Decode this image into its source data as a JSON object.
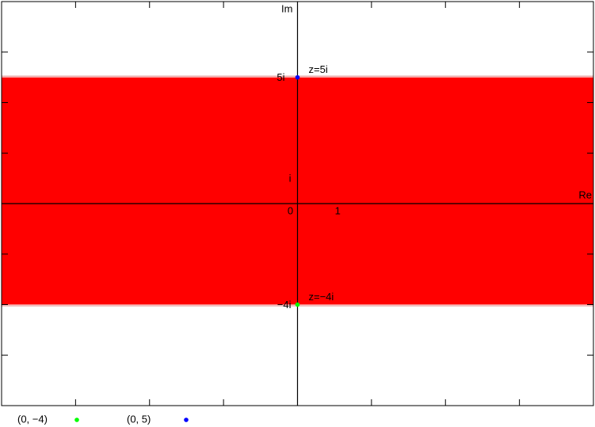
{
  "chart_data": {
    "type": "scatter",
    "xlabel": "Re",
    "ylabel": "Im",
    "xlim": [
      -8,
      8
    ],
    "ylim": [
      -8,
      8
    ],
    "xticks": [
      -6,
      -4,
      -2,
      0,
      2,
      4,
      6
    ],
    "yticks": [
      -6,
      -4,
      -2,
      0,
      2,
      4,
      6
    ],
    "x_labels": [
      {
        "value": 0,
        "label": "0"
      },
      {
        "value": 1,
        "label": "1"
      }
    ],
    "y_labels": [
      {
        "value": 1,
        "label": "i"
      },
      {
        "value": 5,
        "label": "5i"
      },
      {
        "value": -4,
        "label": "−4i"
      }
    ],
    "fill": {
      "y_from": -4,
      "y_to": 5,
      "color": "#ff0000"
    },
    "series": [
      {
        "name": "(0, −4)",
        "color": "#00ff00",
        "x": [
          0
        ],
        "values": [
          -4
        ],
        "point_labels": [
          "z=−4i"
        ]
      },
      {
        "name": "(0, 5)",
        "color": "#0000ff",
        "x": [
          0
        ],
        "values": [
          5
        ],
        "point_labels": [
          "z=5i"
        ]
      }
    ]
  }
}
